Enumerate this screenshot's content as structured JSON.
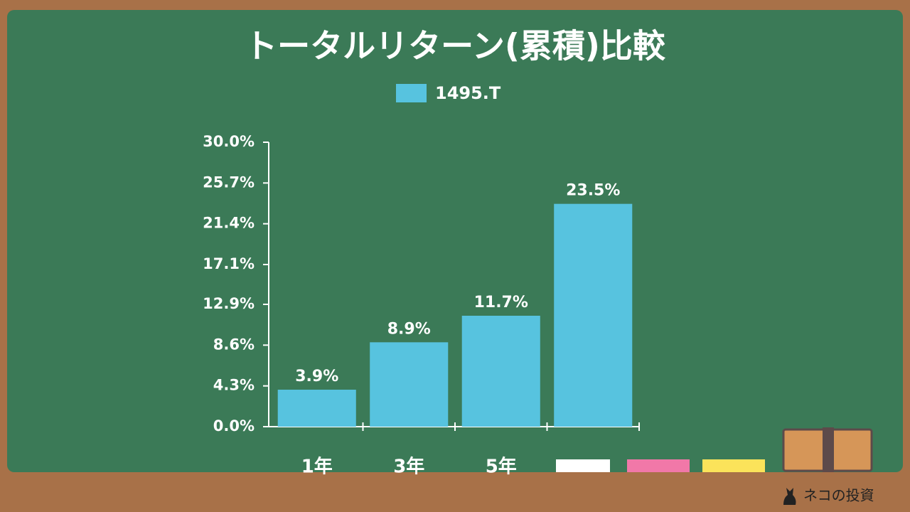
{
  "chart_data": {
    "type": "bar",
    "title": "トータルリターン(累積)比較",
    "categories": [
      "1年",
      "3年",
      "5年",
      null
    ],
    "series": [
      {
        "name": "1495.T",
        "color": "#57c3df",
        "values": [
          3.9,
          8.9,
          11.7,
          23.5
        ],
        "value_labels": [
          "3.9%",
          "8.9%",
          "11.7%",
          "23.5%"
        ]
      }
    ],
    "ylim": [
      0,
      30
    ],
    "yticks": [
      {
        "value": 0,
        "label": "0.0%"
      },
      {
        "value": 4.3,
        "label": "4.3%"
      },
      {
        "value": 8.6,
        "label": "8.6%"
      },
      {
        "value": 12.9,
        "label": "12.9%"
      },
      {
        "value": 17.1,
        "label": "17.1%"
      },
      {
        "value": 21.4,
        "label": "21.4%"
      },
      {
        "value": 25.7,
        "label": "25.7%"
      },
      {
        "value": 30,
        "label": "30.0%"
      }
    ],
    "grid": false
  },
  "footer": "ネコの投資"
}
